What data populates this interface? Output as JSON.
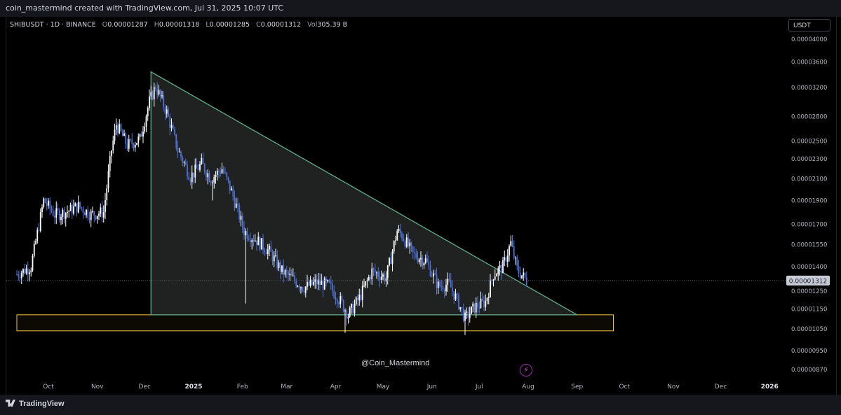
{
  "header": {
    "text": "coin_mastermind created with TradingView.com, Jul 31, 2025 10:07 UTC"
  },
  "legend": {
    "symbol": "SHIBUSDT · 1D · BINANCE",
    "open_key": "O",
    "open": "0.00001287",
    "high_key": "H",
    "high": "0.00001318",
    "low_key": "L",
    "low": "0.00001285",
    "close_key": "C",
    "close": "0.00001312",
    "vol_key": "Vol",
    "vol": "305.39 B"
  },
  "currency_button": "USDT",
  "watermark": "@Coin_Mastermind",
  "footer_brand": "TradingView",
  "colors": {
    "candle_up": "#ffffff",
    "candle_down": "#4f6fd8",
    "triangle_edge": "#5fae8a",
    "triangle_fill": "#2a2e2b",
    "support_box": "#f5c542",
    "last_price_badge": "#c7ccd6",
    "background": "#000000"
  },
  "icons": {
    "bolt": "lightning-bolt-icon",
    "logo": "tradingview-logo-icon"
  },
  "chart_data": {
    "type": "candlestick",
    "scale": "log",
    "y_ticks": [
      8.7e-06,
      9.5e-06,
      1.05e-05,
      1.15e-05,
      1.25e-05,
      1.4e-05,
      1.55e-05,
      1.7e-05,
      1.9e-05,
      2.1e-05,
      2.3e-05,
      2.5e-05,
      2.8e-05,
      3.2e-05,
      3.6e-05,
      4e-05
    ],
    "y_tick_labels": [
      "0.00000870",
      "0.00000950",
      "0.00001050",
      "0.00001150",
      "0.00001250",
      "0.00001400",
      "0.00001550",
      "0.00001700",
      "0.00001900",
      "0.00002100",
      "0.00002300",
      "0.00002500",
      "0.00002800",
      "0.00003200",
      "0.00003600",
      "0.00004000"
    ],
    "x_ticks": [
      {
        "label": "Oct",
        "date": "2024-10-01"
      },
      {
        "label": "Nov",
        "date": "2024-11-01"
      },
      {
        "label": "Dec",
        "date": "2024-12-01"
      },
      {
        "label": "2025",
        "date": "2025-01-01"
      },
      {
        "label": "Feb",
        "date": "2025-02-01"
      },
      {
        "label": "Mar",
        "date": "2025-03-01"
      },
      {
        "label": "Apr",
        "date": "2025-04-01"
      },
      {
        "label": "May",
        "date": "2025-05-01"
      },
      {
        "label": "Jun",
        "date": "2025-06-01"
      },
      {
        "label": "Jul",
        "date": "2025-07-01"
      },
      {
        "label": "Aug",
        "date": "2025-08-01"
      },
      {
        "label": "Sep",
        "date": "2025-09-01"
      },
      {
        "label": "Oct",
        "date": "2025-10-01"
      },
      {
        "label": "Nov",
        "date": "2025-11-01"
      },
      {
        "label": "Dec",
        "date": "2025-12-01"
      },
      {
        "label": "2026",
        "date": "2026-01-01"
      }
    ],
    "last_price": 1.312e-05,
    "last_price_label": "0.00001312",
    "close_path": [
      {
        "date": "2024-09-11",
        "close": 1.35e-05
      },
      {
        "date": "2024-09-20",
        "close": 1.4e-05
      },
      {
        "date": "2024-09-28",
        "close": 1.9e-05
      },
      {
        "date": "2024-10-05",
        "close": 1.78e-05
      },
      {
        "date": "2024-10-12",
        "close": 1.8e-05
      },
      {
        "date": "2024-10-20",
        "close": 1.85e-05
      },
      {
        "date": "2024-10-28",
        "close": 1.78e-05
      },
      {
        "date": "2024-11-05",
        "close": 1.8e-05
      },
      {
        "date": "2024-11-10",
        "close": 2.4e-05
      },
      {
        "date": "2024-11-13",
        "close": 2.7e-05
      },
      {
        "date": "2024-11-20",
        "close": 2.45e-05
      },
      {
        "date": "2024-11-28",
        "close": 2.52e-05
      },
      {
        "date": "2024-12-04",
        "close": 3e-05
      },
      {
        "date": "2024-12-08",
        "close": 3.22e-05
      },
      {
        "date": "2024-12-15",
        "close": 2.85e-05
      },
      {
        "date": "2024-12-22",
        "close": 2.4e-05
      },
      {
        "date": "2024-12-30",
        "close": 2.12e-05
      },
      {
        "date": "2025-01-06",
        "close": 2.25e-05
      },
      {
        "date": "2025-01-12",
        "close": 2.1e-05
      },
      {
        "date": "2025-01-19",
        "close": 2.2e-05
      },
      {
        "date": "2025-01-25",
        "close": 1.98e-05
      },
      {
        "date": "2025-02-02",
        "close": 1.65e-05
      },
      {
        "date": "2025-02-10",
        "close": 1.58e-05
      },
      {
        "date": "2025-02-18",
        "close": 1.5e-05
      },
      {
        "date": "2025-02-26",
        "close": 1.37e-05
      },
      {
        "date": "2025-03-05",
        "close": 1.32e-05
      },
      {
        "date": "2025-03-12",
        "close": 1.27e-05
      },
      {
        "date": "2025-03-20",
        "close": 1.3e-05
      },
      {
        "date": "2025-03-28",
        "close": 1.28e-05
      },
      {
        "date": "2025-04-05",
        "close": 1.18e-05
      },
      {
        "date": "2025-04-09",
        "close": 1.12e-05
      },
      {
        "date": "2025-04-16",
        "close": 1.21e-05
      },
      {
        "date": "2025-04-24",
        "close": 1.37e-05
      },
      {
        "date": "2025-05-03",
        "close": 1.33e-05
      },
      {
        "date": "2025-05-10",
        "close": 1.65e-05
      },
      {
        "date": "2025-05-13",
        "close": 1.62e-05
      },
      {
        "date": "2025-05-20",
        "close": 1.48e-05
      },
      {
        "date": "2025-05-28",
        "close": 1.44e-05
      },
      {
        "date": "2025-06-05",
        "close": 1.28e-05
      },
      {
        "date": "2025-06-12",
        "close": 1.29e-05
      },
      {
        "date": "2025-06-18",
        "close": 1.18e-05
      },
      {
        "date": "2025-06-22",
        "close": 1.1e-05
      },
      {
        "date": "2025-06-28",
        "close": 1.16e-05
      },
      {
        "date": "2025-07-05",
        "close": 1.19e-05
      },
      {
        "date": "2025-07-10",
        "close": 1.35e-05
      },
      {
        "date": "2025-07-16",
        "close": 1.4e-05
      },
      {
        "date": "2025-07-21",
        "close": 1.56e-05
      },
      {
        "date": "2025-07-25",
        "close": 1.38e-05
      },
      {
        "date": "2025-07-31",
        "close": 1.312e-05
      }
    ],
    "triangle": {
      "apex_top": {
        "date": "2024-12-05",
        "price": 3.44e-05
      },
      "base_left": {
        "date": "2024-12-05",
        "price": 1.12e-05
      },
      "base_right": {
        "date": "2025-09-01",
        "price": 1.12e-05
      }
    },
    "support_zone": {
      "from": "2024-09-11",
      "to": "2025-09-24",
      "low": 1.04e-05,
      "high": 1.12e-05
    }
  }
}
